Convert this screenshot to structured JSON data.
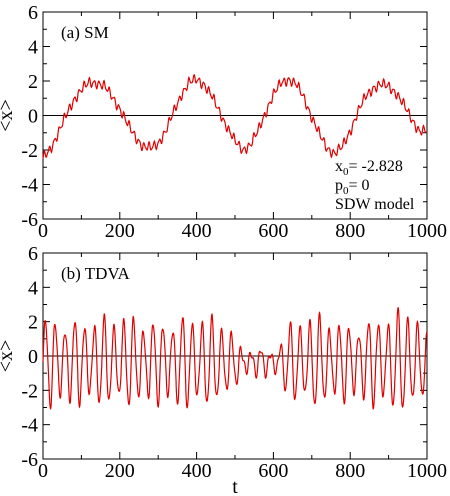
{
  "chart_data": [
    {
      "type": "line",
      "panel_label": "(a) SM",
      "xlabel": "",
      "ylabel": "<x>",
      "xlim": [
        0,
        1000
      ],
      "ylim": [
        -6,
        6
      ],
      "xticks": [
        0,
        200,
        400,
        600,
        800,
        1000
      ],
      "yticks": [
        -6,
        -4,
        -2,
        0,
        2,
        4,
        6
      ],
      "zero_line": true,
      "annotations": {
        "x0_label": "x",
        "x0_sub": "0",
        "x0_value": "= -2.828",
        "p0_label": "p",
        "p0_sub": "0",
        "p0_value": "= 0",
        "model": "SDW model"
      },
      "series": [
        {
          "color": "#e00000",
          "x": [
            0,
            20,
            40,
            60,
            80,
            100,
            120,
            140,
            160,
            180,
            200,
            220,
            240,
            260,
            280,
            300,
            320,
            340,
            360,
            380,
            400,
            420,
            440,
            460,
            480,
            500,
            520,
            540,
            560,
            580,
            600,
            620,
            640,
            660,
            680,
            700,
            720,
            740,
            760,
            780,
            800,
            820,
            840,
            860,
            880,
            900,
            920,
            940,
            960,
            980,
            1000
          ],
          "y": [
            -2.5,
            -1.9,
            -1.0,
            0.0,
            0.9,
            1.5,
            1.9,
            1.9,
            1.7,
            1.1,
            0.4,
            -0.5,
            -1.2,
            -1.8,
            -1.9,
            -1.6,
            -0.9,
            0.2,
            1.2,
            1.9,
            2.1,
            1.8,
            1.1,
            0.2,
            -0.7,
            -1.5,
            -2.0,
            -1.7,
            -0.9,
            0.2,
            1.2,
            1.9,
            2.1,
            1.8,
            1.0,
            -0.1,
            -1.1,
            -1.9,
            -2.2,
            -1.8,
            -0.9,
            0.2,
            1.1,
            1.6,
            1.8,
            1.7,
            1.3,
            0.6,
            -0.2,
            -0.9,
            -0.9
          ],
          "oscillation_amplitude": 0.35,
          "oscillation_period": 13
        }
      ]
    },
    {
      "type": "line",
      "panel_label": "(b) TDVA",
      "xlabel": "t",
      "ylabel": "<x>",
      "xlim": [
        0,
        1000
      ],
      "ylim": [
        -6,
        6
      ],
      "xticks": [
        0,
        200,
        400,
        600,
        800,
        1000
      ],
      "yticks": [
        -6,
        -4,
        -2,
        0,
        2,
        4,
        6
      ],
      "zero_line": true,
      "series": [
        {
          "color": "#e00000",
          "oscillation_period": 25.5,
          "envelope_t": [
            0,
            100,
            200,
            300,
            400,
            480,
            520,
            560,
            600,
            640,
            700,
            800,
            900,
            960,
            1000
          ],
          "envelope_amp": [
            2.6,
            2.5,
            2.7,
            2.4,
            2.8,
            2.3,
            0.6,
            0.9,
            0.5,
            2.2,
            2.8,
            2.2,
            2.8,
            3.2,
            1.6
          ],
          "offset": -0.35
        }
      ]
    }
  ]
}
